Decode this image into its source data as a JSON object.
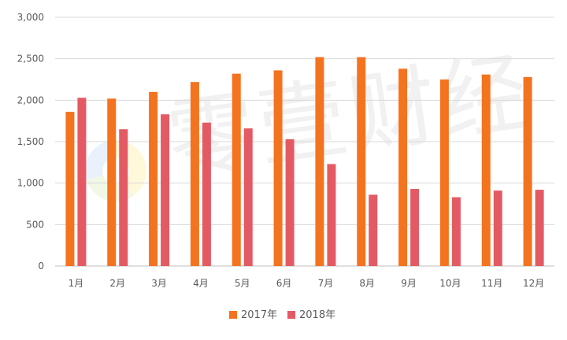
{
  "chart_data": {
    "type": "bar",
    "categories": [
      "1月",
      "2月",
      "3月",
      "4月",
      "5月",
      "6月",
      "7月",
      "8月",
      "9月",
      "10月",
      "11月",
      "12月"
    ],
    "series": [
      {
        "name": "2017年",
        "color": "#F4731F",
        "values": [
          1860,
          2020,
          2100,
          2220,
          2320,
          2360,
          2520,
          2520,
          2380,
          2250,
          2310,
          2280
        ]
      },
      {
        "name": "2018年",
        "color": "#E45A64",
        "values": [
          2030,
          1650,
          1830,
          1730,
          1660,
          1530,
          1230,
          860,
          930,
          830,
          910,
          920
        ]
      }
    ],
    "ylim": [
      0,
      3000
    ],
    "yticks": [
      0,
      500,
      1000,
      1500,
      2000,
      2500,
      3000
    ],
    "ytick_labels": [
      "0",
      "500",
      "1,000",
      "1,500",
      "2,000",
      "2,500",
      "3,000"
    ],
    "grid": true,
    "legend_position": "bottom"
  },
  "watermark": {
    "text": "零壹财经"
  }
}
